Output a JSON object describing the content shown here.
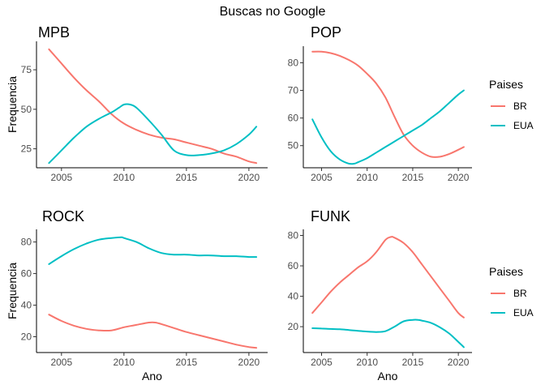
{
  "figure": {
    "title": "Buscas no Google"
  },
  "legend": {
    "title": "Paises",
    "entries": [
      {
        "name": "BR",
        "color": "#F8766D"
      },
      {
        "name": "EUA",
        "color": "#00BFC4"
      }
    ]
  },
  "chart_data": [
    {
      "type": "line",
      "title": "MPB",
      "xlabel": "",
      "ylabel": "Frequencia",
      "xlim": [
        2003,
        2021.5
      ],
      "ylim": [
        13,
        93
      ],
      "xticks": [
        2005,
        2010,
        2015,
        2020
      ],
      "yticks": [
        25,
        50,
        75
      ],
      "series": [
        {
          "name": "BR",
          "color": "#F8766D",
          "x": [
            2004,
            2005,
            2006,
            2007,
            2008,
            2009,
            2010,
            2011,
            2012,
            2013,
            2014,
            2015,
            2016,
            2017,
            2018,
            2019,
            2020,
            2020.6
          ],
          "y": [
            88,
            79,
            70,
            62,
            55,
            47,
            41,
            37,
            34,
            32,
            31,
            29,
            27,
            25,
            22,
            20,
            17,
            16
          ]
        },
        {
          "name": "EUA",
          "color": "#00BFC4",
          "x": [
            2004,
            2005,
            2006,
            2007,
            2008,
            2009,
            2009.6,
            2010,
            2010.5,
            2011,
            2012,
            2013,
            2014,
            2015,
            2016,
            2017,
            2018,
            2019,
            2020,
            2020.6
          ],
          "y": [
            16,
            24,
            32,
            39,
            44,
            48,
            51,
            53,
            53,
            51,
            43,
            34,
            24,
            21,
            21,
            22,
            24,
            28,
            34,
            39
          ]
        }
      ]
    },
    {
      "type": "line",
      "title": "POP",
      "xlabel": "",
      "ylabel": "",
      "xlim": [
        2003,
        2021.5
      ],
      "ylim": [
        42,
        86
      ],
      "xticks": [
        2005,
        2010,
        2015,
        2020
      ],
      "yticks": [
        50,
        60,
        70,
        80
      ],
      "series": [
        {
          "name": "BR",
          "color": "#F8766D",
          "x": [
            2004,
            2005,
            2006,
            2007,
            2008,
            2009,
            2010,
            2011,
            2012,
            2013,
            2014,
            2015,
            2016,
            2017,
            2018,
            2019,
            2020,
            2020.6
          ],
          "y": [
            84,
            84,
            83.5,
            82.5,
            81,
            79,
            76,
            72.5,
            67.5,
            60.5,
            54,
            50,
            47.5,
            46,
            46,
            47,
            48.5,
            49.5
          ]
        },
        {
          "name": "EUA",
          "color": "#00BFC4",
          "x": [
            2004,
            2005,
            2006,
            2007,
            2008,
            2008.6,
            2009,
            2010,
            2011,
            2012,
            2013,
            2014,
            2015,
            2016,
            2017,
            2018,
            2019,
            2020,
            2020.6
          ],
          "y": [
            59.5,
            53,
            48,
            45,
            43.5,
            43.5,
            44,
            45.5,
            47.5,
            49.5,
            51.5,
            53.5,
            55.5,
            57.5,
            60,
            62.5,
            65.5,
            68.5,
            70
          ]
        }
      ]
    },
    {
      "type": "line",
      "title": "ROCK",
      "xlabel": "Ano",
      "ylabel": "Frequencia",
      "xlim": [
        2003,
        2021.5
      ],
      "ylim": [
        10,
        88
      ],
      "xticks": [
        2005,
        2010,
        2015,
        2020
      ],
      "yticks": [
        20,
        40,
        60,
        80
      ],
      "series": [
        {
          "name": "BR",
          "color": "#F8766D",
          "x": [
            2004,
            2005,
            2006,
            2007,
            2008,
            2009,
            2010,
            2011,
            2012,
            2012.5,
            2013,
            2014,
            2015,
            2016,
            2017,
            2018,
            2019,
            2020,
            2020.6
          ],
          "y": [
            34,
            30,
            27,
            25,
            24,
            24,
            26,
            27.5,
            29,
            29,
            28,
            25.5,
            23,
            21,
            19,
            17,
            15,
            13.5,
            13
          ]
        },
        {
          "name": "EUA",
          "color": "#00BFC4",
          "x": [
            2004,
            2005,
            2006,
            2007,
            2008,
            2009,
            2009.8,
            2010,
            2011,
            2012,
            2013,
            2014,
            2015,
            2016,
            2017,
            2018,
            2019,
            2020,
            2020.6
          ],
          "y": [
            66,
            71,
            75.5,
            79,
            81.5,
            82.5,
            83,
            82.5,
            80,
            76,
            73,
            72,
            72,
            71.5,
            71.5,
            71,
            71,
            70.5,
            70.5
          ]
        }
      ]
    },
    {
      "type": "line",
      "title": "FUNK",
      "xlabel": "Ano",
      "ylabel": "",
      "xlim": [
        2003,
        2021.5
      ],
      "ylim": [
        3,
        84
      ],
      "xticks": [
        2005,
        2010,
        2015,
        2020
      ],
      "yticks": [
        20,
        40,
        60,
        80
      ],
      "series": [
        {
          "name": "BR",
          "color": "#F8766D",
          "x": [
            2004,
            2005,
            2006,
            2007,
            2008,
            2009,
            2010,
            2011,
            2012,
            2012.6,
            2013,
            2014,
            2015,
            2016,
            2017,
            2018,
            2019,
            2020,
            2020.6
          ],
          "y": [
            29,
            36,
            43,
            49,
            54,
            59,
            63,
            69,
            77,
            79,
            78.5,
            75,
            69,
            61,
            53,
            45,
            37,
            29,
            26
          ]
        },
        {
          "name": "EUA",
          "color": "#00BFC4",
          "x": [
            2004,
            2005,
            2006,
            2007,
            2008,
            2009,
            2010,
            2011,
            2012,
            2013,
            2014,
            2015,
            2015.6,
            2016,
            2017,
            2018,
            2019,
            2020,
            2020.6
          ],
          "y": [
            19,
            18.8,
            18.5,
            18.3,
            17.8,
            17.3,
            16.8,
            16.5,
            17,
            20,
            23.5,
            24.5,
            24.5,
            24,
            22.5,
            19.5,
            15.5,
            10,
            6.5
          ]
        }
      ]
    }
  ]
}
